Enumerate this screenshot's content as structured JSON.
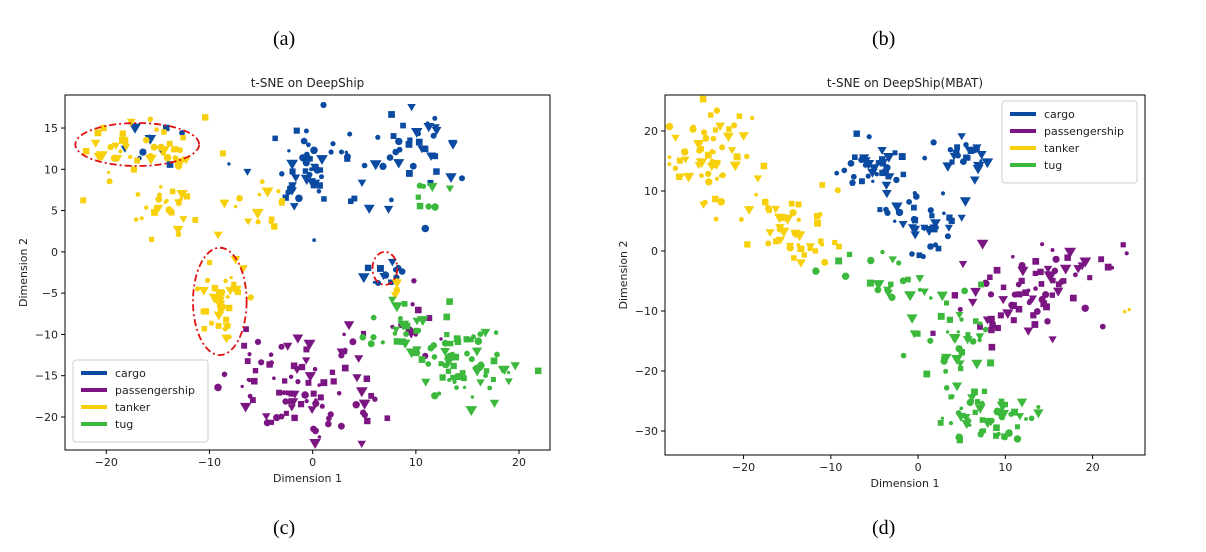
{
  "labels": {
    "a": "(a)",
    "b": "(b)",
    "c": "(c)",
    "d": "(d)"
  },
  "colors": {
    "cargo": "#0a4aa0",
    "passengership": "#7a1582",
    "tanker": "#f7cf0a",
    "tug": "#3cb93c",
    "annotation": "#e01010"
  },
  "chart_data": [
    {
      "type": "scatter",
      "title": "t-SNE on DeepShip",
      "xlabel": "Dimension 1",
      "ylabel": "Dimension 2",
      "xlim": [
        -24,
        23
      ],
      "ylim": [
        -24,
        19
      ],
      "xticks": [
        -20,
        -10,
        0,
        10,
        20
      ],
      "yticks": [
        -20,
        -15,
        -10,
        -5,
        0,
        5,
        10,
        15
      ],
      "grid": false,
      "legend_position": "lower-left",
      "markers": "mixed circles, squares, triangles",
      "series": [
        {
          "name": "cargo",
          "clusters": [
            {
              "cx": -15,
              "cy": 13,
              "sx": 1.5,
              "sy": 1.5,
              "n": 10
            },
            {
              "cx": 0,
              "cy": 10,
              "sx": 3,
              "sy": 3,
              "n": 60
            },
            {
              "cx": 10,
              "cy": 12,
              "sx": 2,
              "sy": 3,
              "n": 35
            },
            {
              "cx": 7,
              "cy": -2,
              "sx": 0.8,
              "sy": 1,
              "n": 14
            }
          ]
        },
        {
          "name": "passengership",
          "clusters": [
            {
              "cx": 0,
              "cy": -16,
              "sx": 4,
              "sy": 3.5,
              "n": 90
            },
            {
              "cx": -6,
              "cy": -12,
              "sx": 1,
              "sy": 1.5,
              "n": 8
            },
            {
              "cx": 10,
              "cy": -8,
              "sx": 1.5,
              "sy": 1.5,
              "n": 10
            }
          ]
        },
        {
          "name": "tanker",
          "clusters": [
            {
              "cx": -17,
              "cy": 12,
              "sx": 3,
              "sy": 2,
              "n": 45
            },
            {
              "cx": -14,
              "cy": 6,
              "sx": 1.5,
              "sy": 2,
              "n": 25
            },
            {
              "cx": -9,
              "cy": -6,
              "sx": 1.2,
              "sy": 3,
              "n": 40
            },
            {
              "cx": -5,
              "cy": 6,
              "sx": 1.5,
              "sy": 2,
              "n": 15
            },
            {
              "cx": 8,
              "cy": -5,
              "sx": 0.5,
              "sy": 0.8,
              "n": 4
            }
          ]
        },
        {
          "name": "tug",
          "clusters": [
            {
              "cx": 15,
              "cy": -13,
              "sx": 3,
              "sy": 2.5,
              "n": 75
            },
            {
              "cx": 8,
              "cy": -9,
              "sx": 2.5,
              "sy": 2,
              "n": 20
            },
            {
              "cx": 11,
              "cy": 6,
              "sx": 1.5,
              "sy": 2,
              "n": 8
            }
          ]
        }
      ],
      "annotations": [
        {
          "type": "ellipse",
          "cx": -17,
          "cy": 13,
          "rx": 6,
          "ry": 2.6
        },
        {
          "type": "ellipse",
          "cx": -9,
          "cy": -6,
          "rx": 2.6,
          "ry": 6.5
        },
        {
          "type": "ellipse",
          "cx": 7,
          "cy": -2,
          "rx": 1.2,
          "ry": 2
        }
      ]
    },
    {
      "type": "scatter",
      "title": "t-SNE on DeepShip(MBAT)",
      "xlabel": "Dimension 1",
      "ylabel": "Dimension 2",
      "xlim": [
        -29,
        26
      ],
      "ylim": [
        -34,
        26
      ],
      "xticks": [
        -20,
        -10,
        0,
        10,
        20
      ],
      "yticks": [
        -30,
        -20,
        -10,
        0,
        10,
        20
      ],
      "grid": false,
      "legend_position": "top-right",
      "markers": "mixed circles, squares, triangles",
      "series": [
        {
          "name": "cargo",
          "clusters": [
            {
              "cx": -5,
              "cy": 14,
              "sx": 3,
              "sy": 2.5,
              "n": 40
            },
            {
              "cx": 6,
              "cy": 16,
              "sx": 2,
              "sy": 2.5,
              "n": 25
            },
            {
              "cx": 2,
              "cy": 4,
              "sx": 2,
              "sy": 3,
              "n": 30
            },
            {
              "cx": -3,
              "cy": 6,
              "sx": 1,
              "sy": 2,
              "n": 8
            }
          ]
        },
        {
          "name": "passengership",
          "clusters": [
            {
              "cx": 12,
              "cy": -8,
              "sx": 4,
              "sy": 3.5,
              "n": 65
            },
            {
              "cx": 18,
              "cy": -2,
              "sx": 3,
              "sy": 2,
              "n": 20
            }
          ]
        },
        {
          "name": "tanker",
          "clusters": [
            {
              "cx": -23,
              "cy": 16,
              "sx": 2.5,
              "sy": 4,
              "n": 60
            },
            {
              "cx": -15,
              "cy": 5,
              "sx": 3,
              "sy": 3,
              "n": 30
            },
            {
              "cx": -13,
              "cy": 0,
              "sx": 2,
              "sy": 1.5,
              "n": 15
            },
            {
              "cx": 24,
              "cy": -10,
              "sx": 0.3,
              "sy": 0.3,
              "n": 2
            }
          ]
        },
        {
          "name": "tug",
          "clusters": [
            {
              "cx": 8,
              "cy": -27,
              "sx": 3,
              "sy": 2,
              "n": 55
            },
            {
              "cx": 4,
              "cy": -15,
              "sx": 2.5,
              "sy": 4,
              "n": 40
            },
            {
              "cx": -3,
              "cy": -6,
              "sx": 3,
              "sy": 2,
              "n": 15
            },
            {
              "cx": -7,
              "cy": -2,
              "sx": 2,
              "sy": 1,
              "n": 8
            }
          ]
        }
      ],
      "annotations": []
    }
  ]
}
